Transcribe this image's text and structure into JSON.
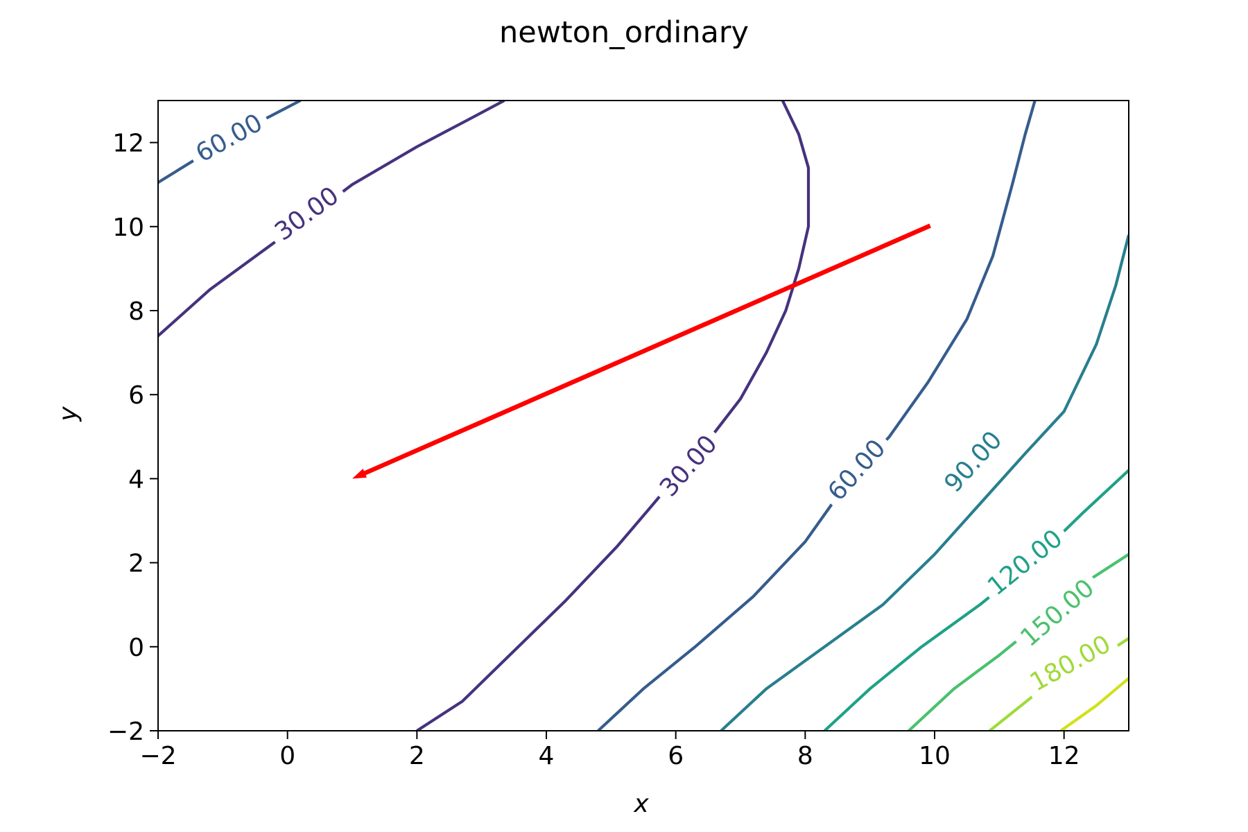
{
  "chart_data": {
    "type": "contour",
    "title": "newton_ordinary",
    "xlabel": "x",
    "ylabel": "y",
    "xlim": [
      -2,
      13
    ],
    "ylim": [
      -2,
      13
    ],
    "xticks": [
      -2,
      0,
      2,
      4,
      6,
      8,
      10,
      12
    ],
    "yticks": [
      -2,
      0,
      2,
      4,
      6,
      8,
      10,
      12
    ],
    "xtick_labels": [
      "−2",
      "0",
      "2",
      "4",
      "6",
      "8",
      "10",
      "12"
    ],
    "ytick_labels": [
      "−2",
      "0",
      "2",
      "4",
      "6",
      "8",
      "10",
      "12"
    ],
    "grid": false,
    "contours": [
      {
        "level": 30,
        "label": "30.00",
        "color": "#46327e",
        "lines": [
          [
            [
              -2,
              7.4
            ],
            [
              -1.2,
              8.5
            ],
            [
              -0.4,
              9.4
            ],
            [
              0.4,
              10.3
            ],
            [
              1.0,
              11.0
            ],
            [
              2.0,
              11.9
            ],
            [
              2.8,
              12.55
            ],
            [
              3.35,
              13.0
            ]
          ],
          [
            [
              2.0,
              -2.0
            ],
            [
              2.7,
              -1.3
            ],
            [
              3.5,
              -0.1
            ],
            [
              4.3,
              1.1
            ],
            [
              5.1,
              2.4
            ],
            [
              5.6,
              3.3
            ],
            [
              6.2,
              4.4
            ],
            [
              6.6,
              5.1
            ],
            [
              7.0,
              5.9
            ],
            [
              7.4,
              7.0
            ],
            [
              7.7,
              8.0
            ],
            [
              7.9,
              9.0
            ],
            [
              8.05,
              10.0
            ],
            [
              8.05,
              11.4
            ],
            [
              7.9,
              12.2
            ],
            [
              7.65,
              13.0
            ]
          ]
        ],
        "label_positions": [
          [
            0.3,
            10.3
          ],
          [
            6.2,
            4.3
          ]
        ]
      },
      {
        "level": 60,
        "label": "60.00",
        "color": "#365c8d",
        "lines": [
          [
            [
              -2,
              11.05
            ],
            [
              -1.0,
              12.0
            ],
            [
              -0.3,
              12.6
            ],
            [
              0.2,
              13.0
            ]
          ],
          [
            [
              4.8,
              -2.0
            ],
            [
              5.5,
              -1.0
            ],
            [
              6.3,
              0.0
            ],
            [
              7.2,
              1.2
            ],
            [
              8.0,
              2.5
            ],
            [
              8.6,
              3.8
            ],
            [
              9.3,
              5.0
            ],
            [
              9.9,
              6.3
            ],
            [
              10.5,
              7.8
            ],
            [
              10.9,
              9.3
            ],
            [
              11.2,
              11.0
            ],
            [
              11.4,
              12.2
            ],
            [
              11.55,
              13.0
            ]
          ]
        ],
        "label_positions": [
          [
            -0.9,
            12.1
          ],
          [
            8.8,
            4.2
          ]
        ]
      },
      {
        "level": 90,
        "label": "90.00",
        "color": "#277f8e",
        "lines": [
          [
            [
              6.7,
              -2.0
            ],
            [
              7.4,
              -1.0
            ],
            [
              8.3,
              0.0
            ],
            [
              9.2,
              1.0
            ],
            [
              10.0,
              2.2
            ],
            [
              10.7,
              3.4
            ],
            [
              11.4,
              4.6
            ],
            [
              12.0,
              5.6
            ],
            [
              12.5,
              7.2
            ],
            [
              12.8,
              8.6
            ],
            [
              13.0,
              9.8
            ]
          ]
        ],
        "label_positions": [
          [
            10.6,
            4.4
          ]
        ]
      },
      {
        "level": 120,
        "label": "120.00",
        "color": "#1fa187",
        "lines": [
          [
            [
              8.3,
              -2.0
            ],
            [
              9.0,
              -1.0
            ],
            [
              9.8,
              0.0
            ],
            [
              10.7,
              1.0
            ],
            [
              11.5,
              2.0
            ],
            [
              12.3,
              3.2
            ],
            [
              13.0,
              4.2
            ]
          ]
        ],
        "label_positions": [
          [
            11.4,
            2.0
          ]
        ]
      },
      {
        "level": 150,
        "label": "150.00",
        "color": "#4ac16d",
        "lines": [
          [
            [
              9.6,
              -2.0
            ],
            [
              10.3,
              -1.0
            ],
            [
              11.0,
              -0.2
            ],
            [
              11.8,
              0.8
            ],
            [
              12.4,
              1.6
            ],
            [
              13.0,
              2.2
            ]
          ]
        ],
        "label_positions": [
          [
            11.9,
            0.8
          ]
        ]
      },
      {
        "level": 180,
        "label": "180.00",
        "color": "#a0da39",
        "lines": [
          [
            [
              10.85,
              -2.0
            ],
            [
              11.5,
              -1.2
            ],
            [
              12.2,
              -0.6
            ],
            [
              13.0,
              0.2
            ]
          ]
        ],
        "label_positions": [
          [
            12.1,
            -0.4
          ]
        ]
      },
      {
        "level": 210,
        "label": "",
        "color": "#d0e11c",
        "lines": [
          [
            [
              11.95,
              -2.0
            ],
            [
              12.5,
              -1.4
            ],
            [
              13.0,
              -0.75
            ]
          ]
        ],
        "label_positions": []
      }
    ],
    "arrow": {
      "from": [
        9.9,
        10.0
      ],
      "to": [
        1.0,
        4.0
      ],
      "color": "#ff0000"
    }
  }
}
